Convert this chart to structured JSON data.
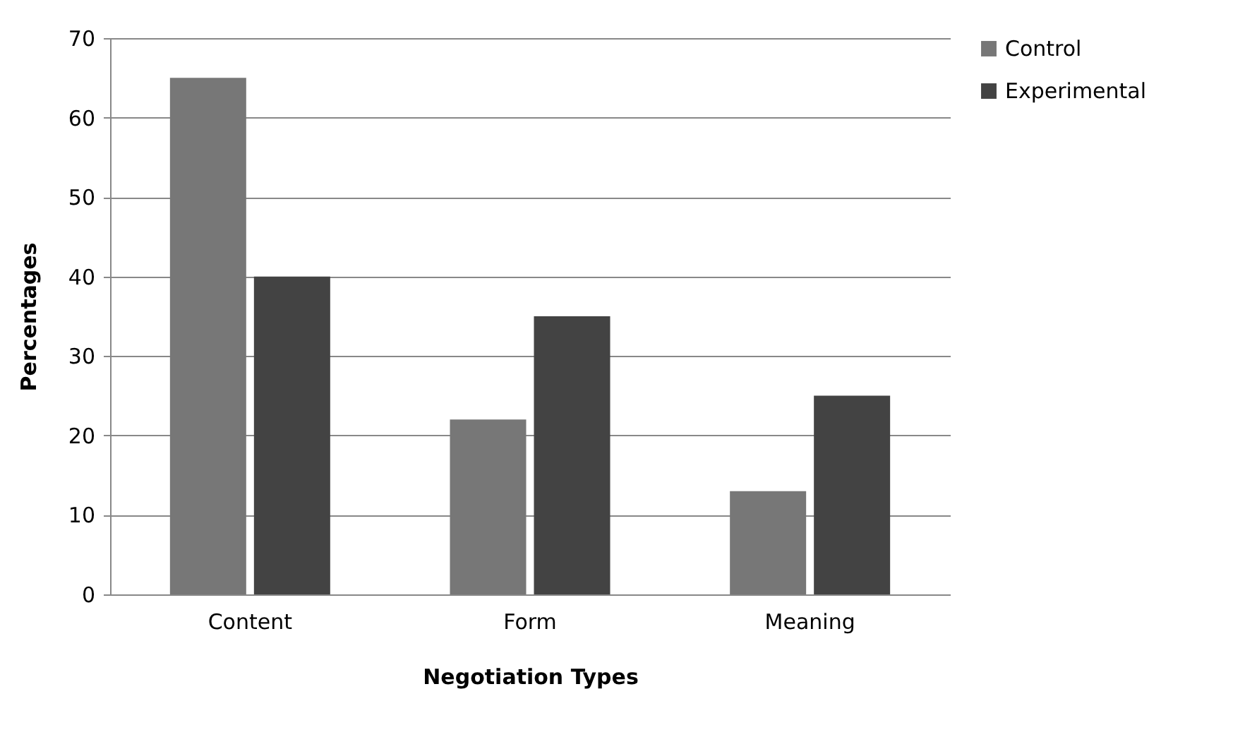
{
  "chart_data": {
    "type": "bar",
    "xlabel": "Negotiation Types",
    "ylabel": "Percentages",
    "categories": [
      "Content",
      "Form",
      "Meaning"
    ],
    "series": [
      {
        "name": "Control",
        "color": "#777777",
        "values": [
          65,
          22,
          13
        ]
      },
      {
        "name": "Experimental",
        "color": "#434343",
        "values": [
          40,
          35,
          25
        ]
      }
    ],
    "ylim": [
      0,
      70
    ],
    "yticks": [
      0,
      10,
      20,
      30,
      40,
      50,
      60,
      70
    ],
    "grid": "y",
    "legend": "right"
  }
}
